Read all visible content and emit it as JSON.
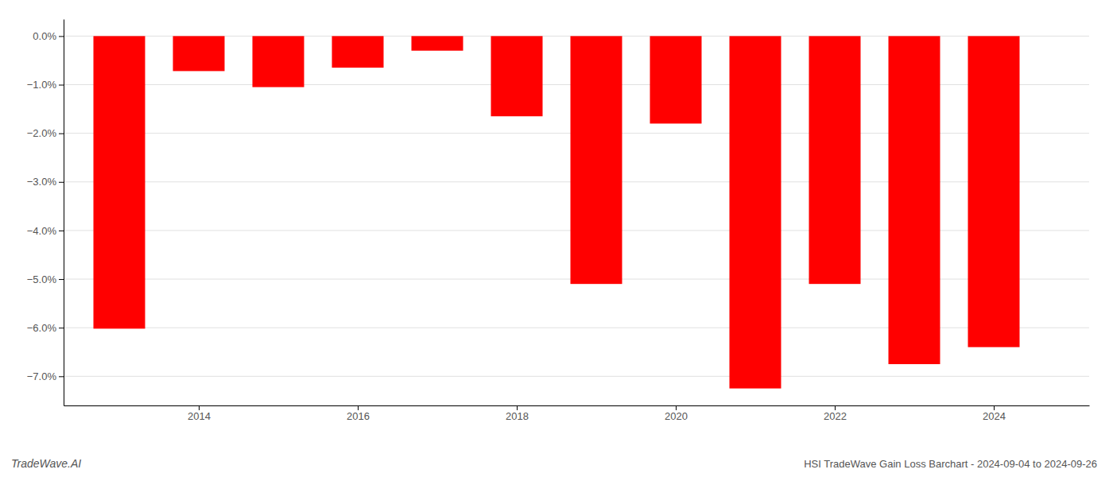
{
  "chart_data": {
    "type": "bar",
    "title": "HSI TradeWave Gain Loss Barchart - 2024-09-04 to 2024-09-26",
    "annotations": [
      "TradeWave.AI"
    ],
    "x": [
      2013,
      2014,
      2015,
      2016,
      2017,
      2018,
      2019,
      2020,
      2021,
      2022,
      2023,
      2024
    ],
    "values": [
      -6.02,
      -0.72,
      -1.05,
      -0.65,
      -0.3,
      -1.65,
      -5.1,
      -1.8,
      -7.25,
      -5.1,
      -6.75,
      -6.4
    ],
    "color": "#ff0000",
    "xlim": [
      2012.3,
      2025.2
    ],
    "xticks": [
      2014,
      2016,
      2018,
      2020,
      2022,
      2024
    ],
    "ylim": [
      -7.6,
      0.35
    ],
    "yticks": [
      {
        "value": 0.0,
        "label": "0.0%"
      },
      {
        "value": -1.0,
        "label": "−1.0%"
      },
      {
        "value": -2.0,
        "label": "−2.0%"
      },
      {
        "value": -3.0,
        "label": "−3.0%"
      },
      {
        "value": -4.0,
        "label": "−4.0%"
      },
      {
        "value": -5.0,
        "label": "−5.0%"
      },
      {
        "value": -6.0,
        "label": "−6.0%"
      },
      {
        "value": -7.0,
        "label": "−7.0%"
      }
    ],
    "grid": true
  }
}
